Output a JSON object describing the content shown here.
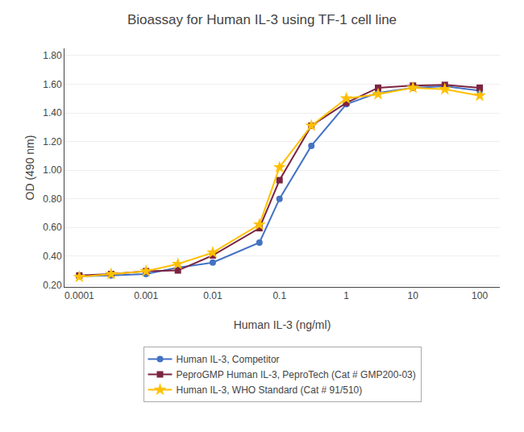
{
  "chart_data": {
    "type": "line",
    "title": "Bioassay for Human IL-3 using TF-1 cell line",
    "x_label": "Human IL-3 (ng/ml)",
    "y_label": "OD (490 nm)",
    "x": [
      0.0001,
      0.0003,
      0.001,
      0.003,
      0.01,
      0.05,
      0.1,
      0.3,
      1,
      3,
      10,
      30,
      100
    ],
    "series": [
      {
        "name": "Human IL-3, Competitor",
        "color": "#4472C4",
        "marker": "circle",
        "values": [
          0.26,
          0.265,
          0.275,
          0.32,
          0.355,
          0.495,
          0.8,
          1.17,
          1.46,
          1.54,
          1.575,
          1.585,
          1.555
        ]
      },
      {
        "name": "PeproGMP Human IL-3, PeproTech (Cat # GMP200-03)",
        "color": "#7B2442",
        "marker": "square",
        "values": [
          0.265,
          0.275,
          0.295,
          0.3,
          0.405,
          0.595,
          0.93,
          1.31,
          1.47,
          1.575,
          1.59,
          1.595,
          1.575
        ]
      },
      {
        "name": "Human IL-3, WHO Standard (Cat # 91/510)",
        "color": "#FFC000",
        "marker": "star",
        "values": [
          0.255,
          0.275,
          0.295,
          0.345,
          0.425,
          0.62,
          1.02,
          1.31,
          1.5,
          1.53,
          1.575,
          1.565,
          1.52
        ]
      }
    ],
    "log": "x",
    "xlim": [
      6e-05,
      200
    ],
    "xticks": [
      0.0001,
      0.001,
      0.01,
      0.1,
      1,
      10,
      100
    ],
    "ylim": [
      0.185,
      1.85
    ],
    "yticks": [
      {
        "value": 0.2,
        "label": "0.20"
      },
      {
        "value": 0.4,
        "label": "0.40"
      },
      {
        "value": 0.6,
        "label": "0.60"
      },
      {
        "value": 0.8,
        "label": "0.80"
      },
      {
        "value": 1.0,
        "label": "1.00"
      },
      {
        "value": 1.2,
        "label": "1.20"
      },
      {
        "value": 1.4,
        "label": "1.40"
      },
      {
        "value": 1.6,
        "label": "1.60"
      },
      {
        "value": 1.8,
        "label": "1.80"
      }
    ],
    "grid": "y",
    "legend": "bottom"
  }
}
